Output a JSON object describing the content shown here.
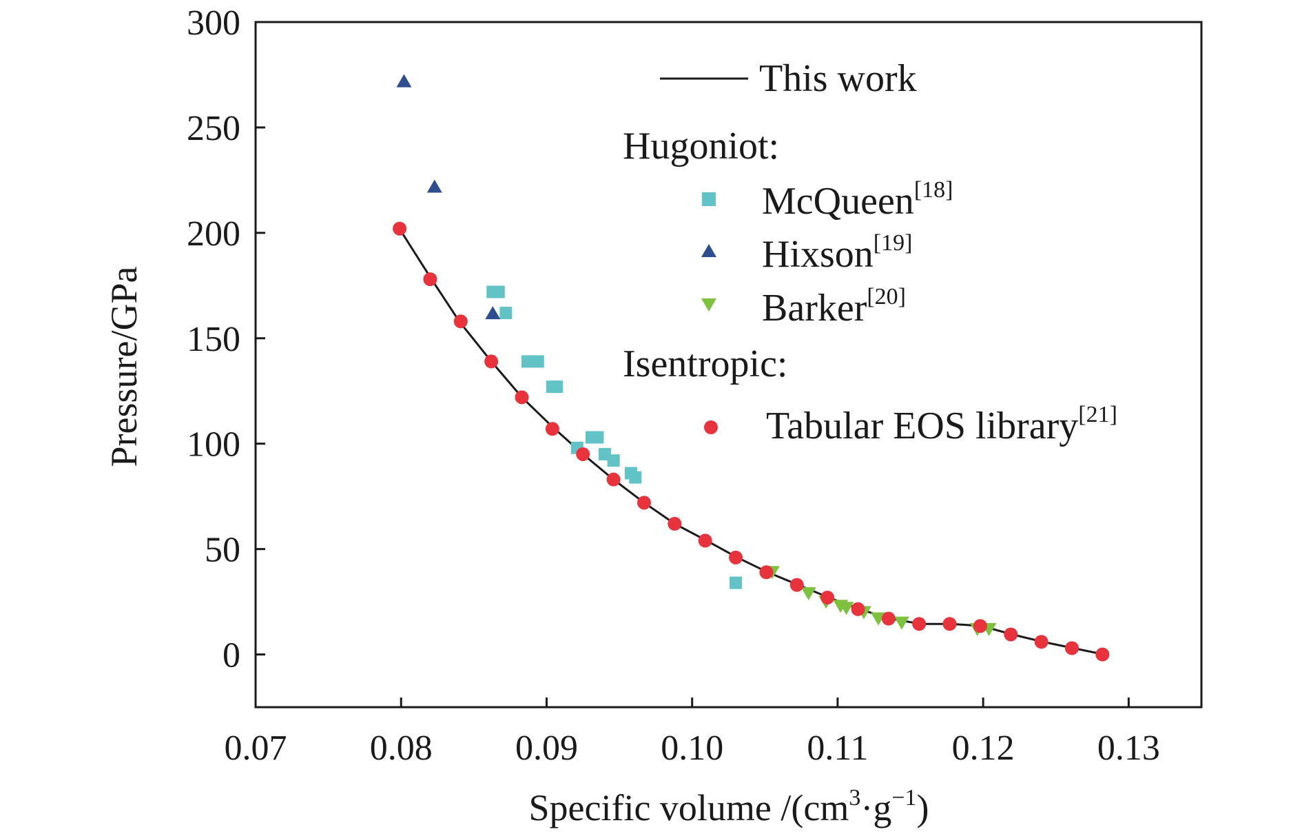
{
  "chart_data": {
    "type": "scatter",
    "xlabel": "Specific volume /(cm³·g⁻¹)",
    "xlabel_main": "Specific volume /(cm",
    "xlabel_sup1": "3",
    "xlabel_mid": "·g",
    "xlabel_sup2": "−1",
    "xlabel_end": ")",
    "ylabel": "Pressure/GPa",
    "xlim": [
      0.07,
      0.135
    ],
    "ylim": [
      -25,
      300
    ],
    "xticks": [
      0.07,
      0.08,
      0.09,
      0.1,
      0.11,
      0.12,
      0.13
    ],
    "xtick_labels": [
      "0.07",
      "0.08",
      "0.09",
      "0.10",
      "0.11",
      "0.12",
      "0.13"
    ],
    "yticks": [
      0,
      50,
      100,
      150,
      200,
      250,
      300
    ],
    "ytick_labels": [
      "0",
      "50",
      "100",
      "150",
      "200",
      "250",
      "300"
    ],
    "legend_position": "top-right",
    "legend": {
      "line_label": "This work",
      "hugoniot_heading": "Hugoniot:",
      "isentropic_heading": "Isentropic:",
      "mcqueen": "McQueen",
      "mcqueen_ref": "[18]",
      "hixson": "Hixson",
      "hixson_ref": "[19]",
      "barker": "Barker",
      "barker_ref": "[20]",
      "tabular": "Tabular EOS library",
      "tabular_ref": "[21]"
    },
    "series": [
      {
        "name": "This work",
        "kind": "line",
        "color": "#1a1a1a",
        "x": [
          0.0797,
          0.082,
          0.084,
          0.0862,
          0.0883,
          0.0904,
          0.0925,
          0.0946,
          0.0967,
          0.0988,
          0.101,
          0.1031,
          0.1052,
          0.1073,
          0.1094,
          0.1115,
          0.1136,
          0.1157,
          0.1178,
          0.1199,
          0.122,
          0.1241,
          0.1262,
          0.1283
        ],
        "y": [
          204,
          179,
          158,
          139,
          122,
          108,
          95,
          83,
          72,
          62,
          54,
          46,
          39,
          33,
          27,
          21.5,
          17,
          14.5,
          14.5,
          13.5,
          9.5,
          6,
          3,
          0
        ]
      },
      {
        "name": "McQueen",
        "kind": "square",
        "color": "#62c3c7",
        "x": [
          0.0863,
          0.0867,
          0.0872,
          0.0887,
          0.0894,
          0.0904,
          0.0907,
          0.0921,
          0.0931,
          0.0935,
          0.094,
          0.0946,
          0.0958,
          0.0961,
          0.103
        ],
        "y": [
          172,
          172,
          162,
          139,
          139,
          127,
          127,
          98,
          103,
          103,
          95,
          92,
          86,
          84,
          34
        ]
      },
      {
        "name": "Hixson",
        "kind": "triangle-up",
        "color": "#2f4e8f",
        "x": [
          0.0802,
          0.0823,
          0.0863
        ],
        "y": [
          272,
          222,
          162
        ]
      },
      {
        "name": "Barker",
        "kind": "triangle-down",
        "color": "#7cc23f",
        "x": [
          0.1055,
          0.108,
          0.1092,
          0.1102,
          0.1106,
          0.1118,
          0.1128,
          0.1144,
          0.1196,
          0.1204
        ],
        "y": [
          39,
          29,
          25,
          23,
          22,
          20,
          17,
          15,
          12,
          12
        ]
      },
      {
        "name": "Tabular EOS library",
        "kind": "circle",
        "color": "#e8323c",
        "x": [
          0.0799,
          0.082,
          0.0841,
          0.0862,
          0.0883,
          0.0904,
          0.0925,
          0.0946,
          0.0967,
          0.0988,
          0.1009,
          0.103,
          0.1051,
          0.1072,
          0.1093,
          0.1114,
          0.1135,
          0.1156,
          0.1177,
          0.1198,
          0.1219,
          0.124,
          0.1261,
          0.1282
        ],
        "y": [
          202,
          178,
          158,
          139,
          122,
          107,
          95,
          83,
          72,
          62,
          54,
          46,
          39,
          33,
          27,
          21.5,
          17,
          14.5,
          14.5,
          13.5,
          9.5,
          6,
          3,
          0
        ]
      }
    ]
  }
}
